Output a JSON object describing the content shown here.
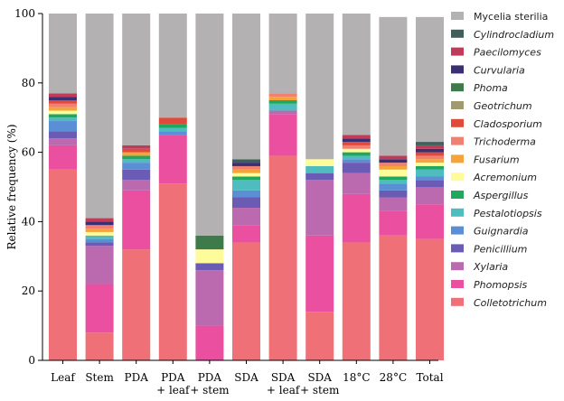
{
  "chart_data": {
    "type": "bar",
    "stacked": true,
    "title": "",
    "xlabel": "",
    "ylabel": "Relative frequency (%)",
    "ylim": [
      0,
      100
    ],
    "yticks": [
      0,
      20,
      40,
      60,
      80,
      100
    ],
    "categories": [
      [
        "Leaf"
      ],
      [
        "Stem"
      ],
      [
        "PDA"
      ],
      [
        "PDA",
        "+ leaf"
      ],
      [
        "PDA",
        "+ stem"
      ],
      [
        "SDA"
      ],
      [
        "SDA",
        "+ leaf"
      ],
      [
        "SDA",
        "+ stem"
      ],
      [
        "18°C"
      ],
      [
        "28°C"
      ],
      [
        "Total"
      ]
    ],
    "legend_position": "right",
    "series": [
      {
        "name": "Colletotrichum",
        "italic": true,
        "color": "#f07078",
        "values": [
          55,
          8,
          32,
          51,
          0,
          34,
          59,
          14,
          34,
          36,
          35
        ]
      },
      {
        "name": "Phomopsis",
        "italic": true,
        "color": "#ea4fa0",
        "values": [
          7,
          14,
          17,
          14,
          10,
          5,
          12,
          22,
          14,
          7,
          10
        ]
      },
      {
        "name": "Xylaria",
        "italic": true,
        "color": "#bb6ab0",
        "values": [
          2,
          11,
          3,
          0,
          16,
          5,
          1,
          16,
          6,
          4,
          5
        ]
      },
      {
        "name": "Penicillium",
        "italic": true,
        "color": "#6b5bb5",
        "values": [
          2,
          1,
          3,
          0,
          2,
          3,
          0,
          2,
          3,
          2,
          2
        ]
      },
      {
        "name": "Guignardia",
        "italic": true,
        "color": "#5a8fd6",
        "values": [
          3,
          1,
          2,
          1,
          0,
          2,
          0,
          0,
          1,
          2,
          1
        ]
      },
      {
        "name": "Pestalotiopsis",
        "italic": true,
        "color": "#4fbcbf",
        "values": [
          1,
          1,
          1,
          1,
          0,
          3,
          2,
          2,
          1,
          1,
          2
        ]
      },
      {
        "name": "Aspergillus",
        "italic": true,
        "color": "#20a860",
        "values": [
          1,
          0,
          1,
          1,
          0,
          1,
          1,
          0,
          1,
          1,
          1
        ]
      },
      {
        "name": "Acremonium",
        "italic": true,
        "color": "#fdfb9a",
        "values": [
          1,
          1,
          0,
          0,
          4,
          1,
          0,
          2,
          1,
          2,
          1
        ]
      },
      {
        "name": "Fusarium",
        "italic": true,
        "color": "#f5a43a",
        "values": [
          1,
          1,
          1,
          0,
          0,
          1,
          1,
          0,
          0,
          1,
          1
        ]
      },
      {
        "name": "Trichoderma",
        "italic": true,
        "color": "#f08070",
        "values": [
          1,
          1,
          0,
          0,
          0,
          1,
          1,
          0,
          1,
          1,
          1
        ]
      },
      {
        "name": "Cladosporium",
        "italic": true,
        "color": "#e04a3a",
        "values": [
          1,
          0,
          1,
          2,
          0,
          0,
          0,
          0,
          1,
          0,
          1
        ]
      },
      {
        "name": "Geotrichum",
        "italic": true,
        "color": "#a09a70",
        "values": [
          0,
          0,
          0,
          0,
          0,
          0,
          0,
          0,
          0,
          0,
          0
        ]
      },
      {
        "name": "Phoma",
        "italic": true,
        "color": "#3f7a4a",
        "values": [
          0,
          0,
          0,
          0,
          4,
          0,
          0,
          0,
          0,
          0,
          0
        ]
      },
      {
        "name": "Curvularia",
        "italic": true,
        "color": "#3a2f72",
        "values": [
          1,
          1,
          0,
          0,
          0,
          1,
          0,
          0,
          1,
          1,
          1
        ]
      },
      {
        "name": "Paecilomyces",
        "italic": true,
        "color": "#c03a5a",
        "values": [
          1,
          1,
          1,
          0,
          0,
          0,
          0,
          0,
          1,
          1,
          1
        ]
      },
      {
        "name": "Cylindrocladium",
        "italic": true,
        "color": "#3f5f5a",
        "values": [
          0,
          0,
          0,
          0,
          0,
          1,
          0,
          0,
          0,
          0,
          1
        ]
      },
      {
        "name": "Mycelia sterilia",
        "italic": false,
        "color": "#b3b1b2",
        "values": [
          23,
          59,
          38,
          30,
          64,
          42,
          23,
          42,
          35,
          40,
          36
        ]
      }
    ],
    "legend_order": [
      "Mycelia sterilia",
      "Cylindrocladium",
      "Paecilomyces",
      "Curvularia",
      "Phoma",
      "Geotrichum",
      "Cladosporium",
      "Trichoderma",
      "Fusarium",
      "Acremonium",
      "Aspergillus",
      "Pestalotiopsis",
      "Guignardia",
      "Penicillium",
      "Xylaria",
      "Phomopsis",
      "Colletotrichum"
    ]
  }
}
